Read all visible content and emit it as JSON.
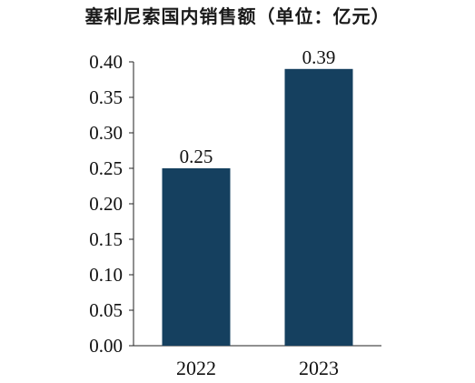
{
  "chart_data": {
    "type": "bar",
    "title": "塞利尼索国内销售额（单位：亿元）",
    "categories": [
      "2022",
      "2023"
    ],
    "values": [
      0.25,
      0.39
    ],
    "data_labels": [
      "0.25",
      "0.39"
    ],
    "y_ticks": [
      "0.00",
      "0.05",
      "0.10",
      "0.15",
      "0.20",
      "0.25",
      "0.30",
      "0.35",
      "0.40"
    ],
    "ylim": [
      0,
      0.4
    ],
    "xlabel": "",
    "ylabel": "",
    "grid": false,
    "bar_color": "#15405f"
  }
}
